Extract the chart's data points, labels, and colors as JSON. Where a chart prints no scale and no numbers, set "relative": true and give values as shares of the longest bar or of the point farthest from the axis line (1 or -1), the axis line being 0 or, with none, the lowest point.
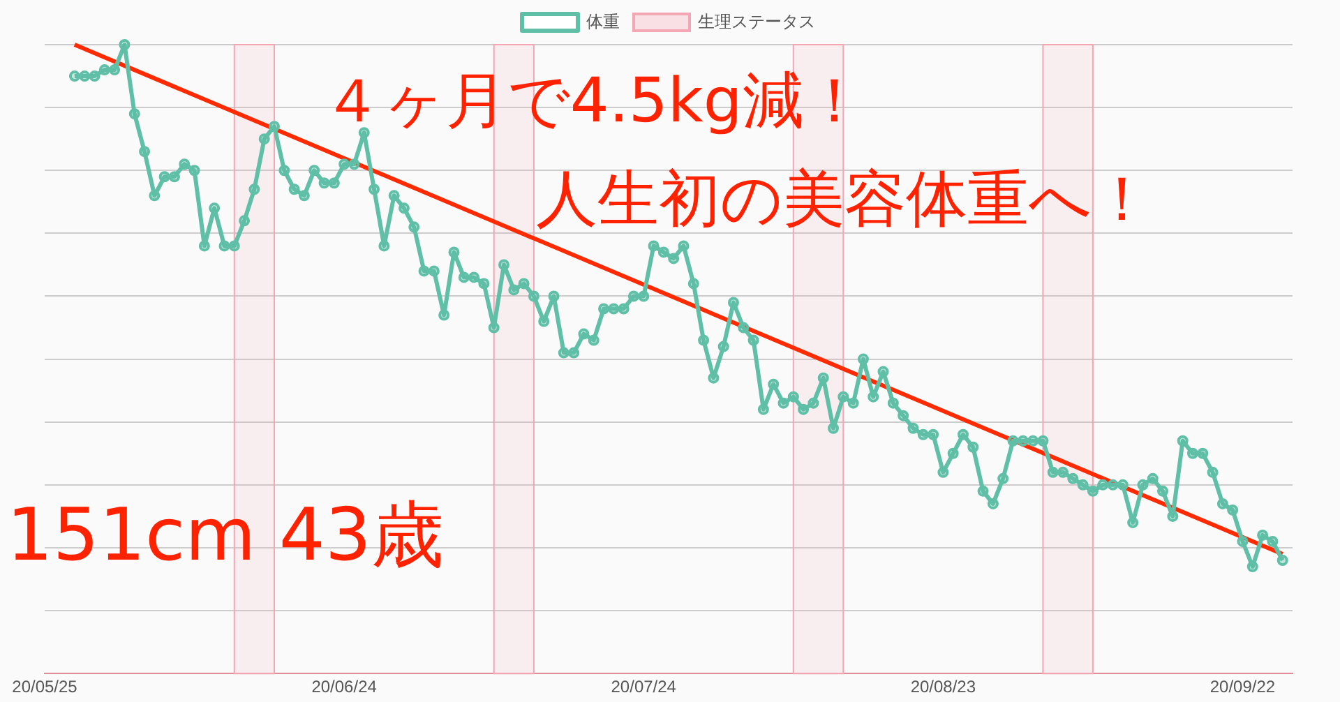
{
  "chart_data": {
    "type": "line",
    "relative": true,
    "marker": "circle",
    "grid": "y",
    "legend": "top",
    "annotations": [
      "４ヶ月で4.5kg減！",
      "人生初の美容体重へ！",
      "151cm 43歳"
    ],
    "xlim": [
      "--05-25",
      "--09-27"
    ],
    "xticks": [
      {
        "value": "--05-25",
        "label": "20/05/25"
      },
      {
        "value": "--06-24",
        "label": "20/06/24"
      },
      {
        "value": "--07-24",
        "label": "20/07/24"
      },
      {
        "value": "--08-23",
        "label": "20/08/23"
      },
      {
        "value": "--09-22",
        "label": "20/09/22"
      }
    ],
    "x": [
      "--05-28",
      "--05-29",
      "--05-30",
      "--05-31",
      "--06-01",
      "--06-02",
      "--06-03",
      "--06-04",
      "--06-05",
      "--06-06",
      "--06-07",
      "--06-08",
      "--06-09",
      "--06-10",
      "--06-11",
      "--06-12",
      "--06-13",
      "--06-14",
      "--06-15",
      "--06-16",
      "--06-17",
      "--06-18",
      "--06-19",
      "--06-20",
      "--06-21",
      "--06-22",
      "--06-23",
      "--06-24",
      "--06-25",
      "--06-26",
      "--06-27",
      "--06-28",
      "--06-29",
      "--06-30",
      "--07-01",
      "--07-02",
      "--07-03",
      "--07-04",
      "--07-05",
      "--07-06",
      "--07-07",
      "--07-08",
      "--07-09",
      "--07-10",
      "--07-11",
      "--07-12",
      "--07-13",
      "--07-14",
      "--07-15",
      "--07-16",
      "--07-17",
      "--07-18",
      "--07-19",
      "--07-20",
      "--07-21",
      "--07-22",
      "--07-23",
      "--07-24",
      "--07-25",
      "--07-26",
      "--07-27",
      "--07-28",
      "--07-29",
      "--07-30",
      "--07-31",
      "--08-01",
      "--08-02",
      "--08-03",
      "--08-04",
      "--08-05",
      "--08-06",
      "--08-07",
      "--08-08",
      "--08-09",
      "--08-10",
      "--08-11",
      "--08-12",
      "--08-13",
      "--08-14",
      "--08-15",
      "--08-16",
      "--08-17",
      "--08-18",
      "--08-19",
      "--08-20",
      "--08-21",
      "--08-22",
      "--08-23",
      "--08-24",
      "--08-25",
      "--08-26",
      "--08-27",
      "--08-28",
      "--08-29",
      "--08-30",
      "--08-31",
      "--09-01",
      "--09-02",
      "--09-03",
      "--09-04",
      "--09-05",
      "--09-06",
      "--09-07",
      "--09-08",
      "--09-09",
      "--09-10",
      "--09-11",
      "--09-12",
      "--09-13",
      "--09-14",
      "--09-15",
      "--09-16",
      "--09-17",
      "--09-18",
      "--09-19",
      "--09-20",
      "--09-21",
      "--09-22",
      "--09-23",
      "--09-24",
      "--09-25",
      "--09-26"
    ],
    "series": [
      {
        "name": "体重",
        "color": "#5fbfa7",
        "values": [
          0.95,
          0.95,
          0.95,
          0.96,
          0.96,
          1.0,
          0.89,
          0.83,
          0.76,
          0.79,
          0.79,
          0.81,
          0.8,
          0.68,
          0.74,
          0.68,
          0.68,
          0.72,
          0.77,
          0.85,
          0.87,
          0.8,
          0.77,
          0.76,
          0.8,
          0.78,
          0.78,
          0.81,
          0.81,
          0.86,
          0.77,
          0.68,
          0.76,
          0.74,
          0.71,
          0.64,
          0.64,
          0.57,
          0.67,
          0.63,
          0.63,
          0.62,
          0.55,
          0.65,
          0.61,
          0.62,
          0.6,
          0.56,
          0.6,
          0.51,
          0.51,
          0.54,
          0.53,
          0.58,
          0.58,
          0.58,
          0.6,
          0.6,
          0.68,
          0.67,
          0.66,
          0.68,
          0.62,
          0.53,
          0.47,
          0.52,
          0.59,
          0.55,
          0.53,
          0.42,
          0.46,
          0.43,
          0.44,
          0.42,
          0.43,
          0.47,
          0.39,
          0.44,
          0.43,
          0.5,
          0.44,
          0.48,
          0.43,
          0.41,
          0.39,
          0.38,
          0.38,
          0.32,
          0.35,
          0.38,
          0.36,
          0.29,
          0.27,
          0.31,
          0.37,
          0.37,
          0.37,
          0.37,
          0.32,
          0.32,
          0.31,
          0.3,
          0.29,
          0.3,
          0.3,
          0.3,
          0.24,
          0.3,
          0.31,
          0.29,
          0.25,
          0.37,
          0.35,
          0.35,
          0.32,
          0.27,
          0.26,
          0.21,
          0.17,
          0.22,
          0.21,
          0.18
        ]
      },
      {
        "type": "line",
        "color": "#ff2a00",
        "marker": "none",
        "x": [
          "--05-28",
          "--09-26"
        ],
        "values": [
          1.0,
          0.19
        ]
      }
    ],
    "bands": [
      {
        "axis": "x",
        "from": "--06-13",
        "to": "--06-17",
        "label": "生理ステータス",
        "color": "#f4a6b4"
      },
      {
        "axis": "x",
        "from": "--07-09",
        "to": "--07-13",
        "color": "#f4a6b4"
      },
      {
        "axis": "x",
        "from": "--08-08",
        "to": "--08-13",
        "color": "#f4a6b4"
      },
      {
        "axis": "x",
        "from": "--09-02",
        "to": "--09-07",
        "color": "#f4a6b4"
      }
    ]
  }
}
